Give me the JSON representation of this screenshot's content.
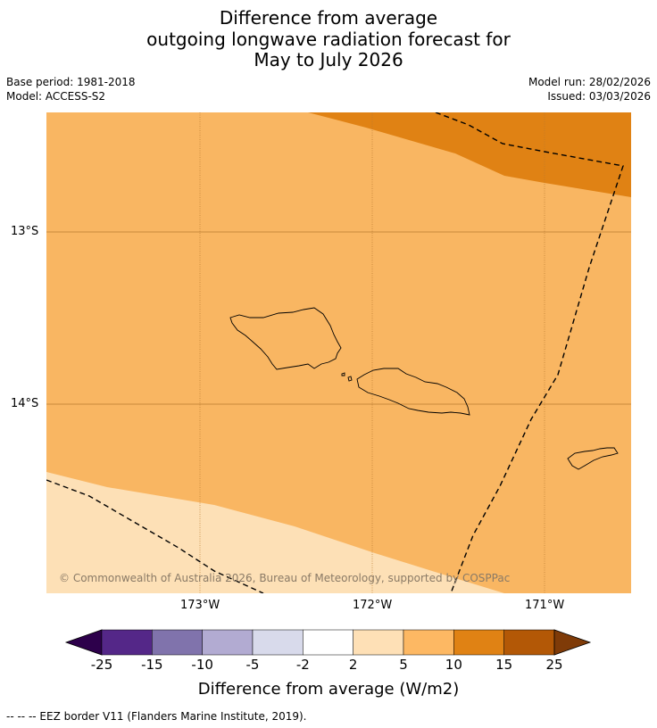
{
  "title": {
    "line1": "Difference from average",
    "line2": "outgoing longwave radiation forecast for",
    "line3": "May to July 2026"
  },
  "meta": {
    "base_period": "Base period: 1981-2018",
    "model": "Model: ACCESS-S2",
    "model_run": "Model run: 28/02/2026",
    "issued": "Issued: 03/03/2026"
  },
  "map": {
    "lat_labels": [
      "13°S",
      "14°S"
    ],
    "lon_labels": [
      "173°W",
      "172°W",
      "171°W"
    ],
    "copyright": "© Commonwealth of Australia 2026, Bureau of Meteorology, supported by COSPPac",
    "colors": {
      "band_5_10": "#f9b662",
      "band_10_15": "#e08214",
      "band_2_5": "#fde0b6",
      "land_outline": "#000000",
      "grid": "#b87a30"
    }
  },
  "colorbar": {
    "title": "Difference from average (W/m2)",
    "ticks": [
      "-25",
      "-15",
      "-10",
      "-5",
      "-2",
      "2",
      "5",
      "10",
      "15",
      "25"
    ],
    "colors": [
      "#2d004b",
      "#542788",
      "#8073ac",
      "#b2abd2",
      "#d8daeb",
      "#ffffff",
      "#fee0b6",
      "#fdb863",
      "#e08214",
      "#b35806",
      "#7f3b08"
    ]
  },
  "footer": "--  --  -- EEZ border V11 (Flanders Marine Institute, 2019)."
}
